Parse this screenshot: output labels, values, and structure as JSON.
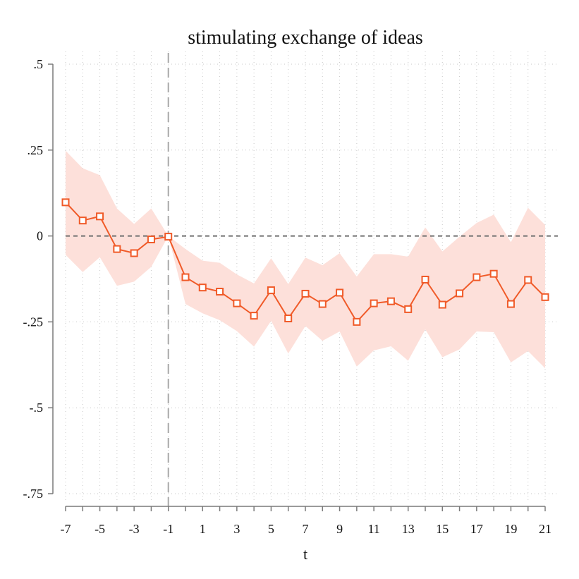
{
  "chart_data": {
    "type": "line",
    "title": "stimulating exchange of ideas",
    "xlabel": "t",
    "ylabel": "",
    "xlim": [
      -7,
      21
    ],
    "ylim": [
      -0.75,
      0.5
    ],
    "x_ticks": [
      -7,
      -5,
      -3,
      -1,
      1,
      3,
      5,
      7,
      9,
      11,
      13,
      15,
      17,
      19,
      21
    ],
    "x_tick_labels": [
      "-7",
      "-5",
      "-3",
      "-1",
      "1",
      "3",
      "5",
      "7",
      "9",
      "11",
      "13",
      "15",
      "17",
      "19",
      "21"
    ],
    "y_ticks": [
      0.5,
      0.25,
      0,
      -0.25,
      -0.5,
      -0.75
    ],
    "y_tick_labels": [
      ".5",
      ".25",
      "0",
      "-.25",
      "-.5",
      "-.75"
    ],
    "grid": true,
    "reference_lines": {
      "x": -1,
      "y": 0
    },
    "colors": {
      "line": "#f05a28",
      "band": "#fde0da",
      "refline": "#707070",
      "vline": "#a8a8a8"
    },
    "series": [
      {
        "x": [
          -7,
          -6,
          -5,
          -4,
          -3,
          -2,
          -1,
          0,
          1,
          2,
          3,
          4,
          5,
          6,
          7,
          8,
          9,
          10,
          11,
          12,
          13,
          14,
          15,
          16,
          17,
          18,
          19,
          20,
          21
        ],
        "y": [
          0.098,
          0.045,
          0.057,
          -0.038,
          -0.05,
          -0.01,
          -0.002,
          -0.12,
          -0.15,
          -0.162,
          -0.196,
          -0.232,
          -0.158,
          -0.24,
          -0.168,
          -0.198,
          -0.165,
          -0.25,
          -0.196,
          -0.19,
          -0.213,
          -0.127,
          -0.2,
          -0.167,
          -0.12,
          -0.11,
          -0.198,
          -0.128,
          -0.178
        ],
        "ci_lower": [
          -0.055,
          -0.105,
          -0.062,
          -0.145,
          -0.133,
          -0.09,
          0.0,
          -0.198,
          -0.225,
          -0.245,
          -0.277,
          -0.322,
          -0.247,
          -0.342,
          -0.262,
          -0.305,
          -0.278,
          -0.38,
          -0.333,
          -0.321,
          -0.363,
          -0.272,
          -0.353,
          -0.33,
          -0.278,
          -0.28,
          -0.368,
          -0.335,
          -0.385
        ],
        "ci_upper": [
          0.248,
          0.197,
          0.177,
          0.08,
          0.035,
          0.08,
          0.0,
          -0.038,
          -0.072,
          -0.078,
          -0.112,
          -0.138,
          -0.065,
          -0.14,
          -0.063,
          -0.085,
          -0.05,
          -0.118,
          -0.053,
          -0.053,
          -0.06,
          0.025,
          -0.045,
          -0.002,
          0.038,
          0.062,
          -0.018,
          0.082,
          0.032
        ]
      }
    ]
  }
}
